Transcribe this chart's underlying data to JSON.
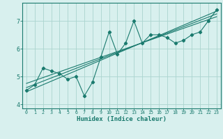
{
  "xlabel": "Humidex (Indice chaleur)",
  "background_color": "#d8f0ee",
  "grid_color": "#aad4ce",
  "line_color": "#1a7a6e",
  "xlim": [
    -0.5,
    23.5
  ],
  "ylim": [
    3.85,
    7.65
  ],
  "yticks": [
    4,
    5,
    6,
    7
  ],
  "xticks": [
    0,
    1,
    2,
    3,
    4,
    5,
    6,
    7,
    8,
    9,
    10,
    11,
    12,
    13,
    14,
    15,
    16,
    17,
    18,
    19,
    20,
    21,
    22,
    23
  ],
  "data_x": [
    0,
    1,
    2,
    3,
    4,
    5,
    6,
    7,
    8,
    9,
    10,
    11,
    12,
    13,
    14,
    15,
    16,
    17,
    18,
    19,
    20,
    21,
    22,
    23
  ],
  "data_y": [
    4.5,
    4.7,
    5.3,
    5.2,
    5.1,
    4.9,
    5.0,
    4.3,
    4.8,
    5.7,
    6.6,
    5.8,
    6.2,
    7.0,
    6.2,
    6.5,
    6.5,
    6.4,
    6.2,
    6.3,
    6.5,
    6.6,
    7.0,
    7.4
  ],
  "trend1_x": [
    0,
    23
  ],
  "trend1_y": [
    4.45,
    7.35
  ],
  "trend2_x": [
    0,
    23
  ],
  "trend2_y": [
    4.6,
    7.25
  ],
  "trend3_x": [
    0,
    23
  ],
  "trend3_y": [
    4.75,
    7.15
  ]
}
